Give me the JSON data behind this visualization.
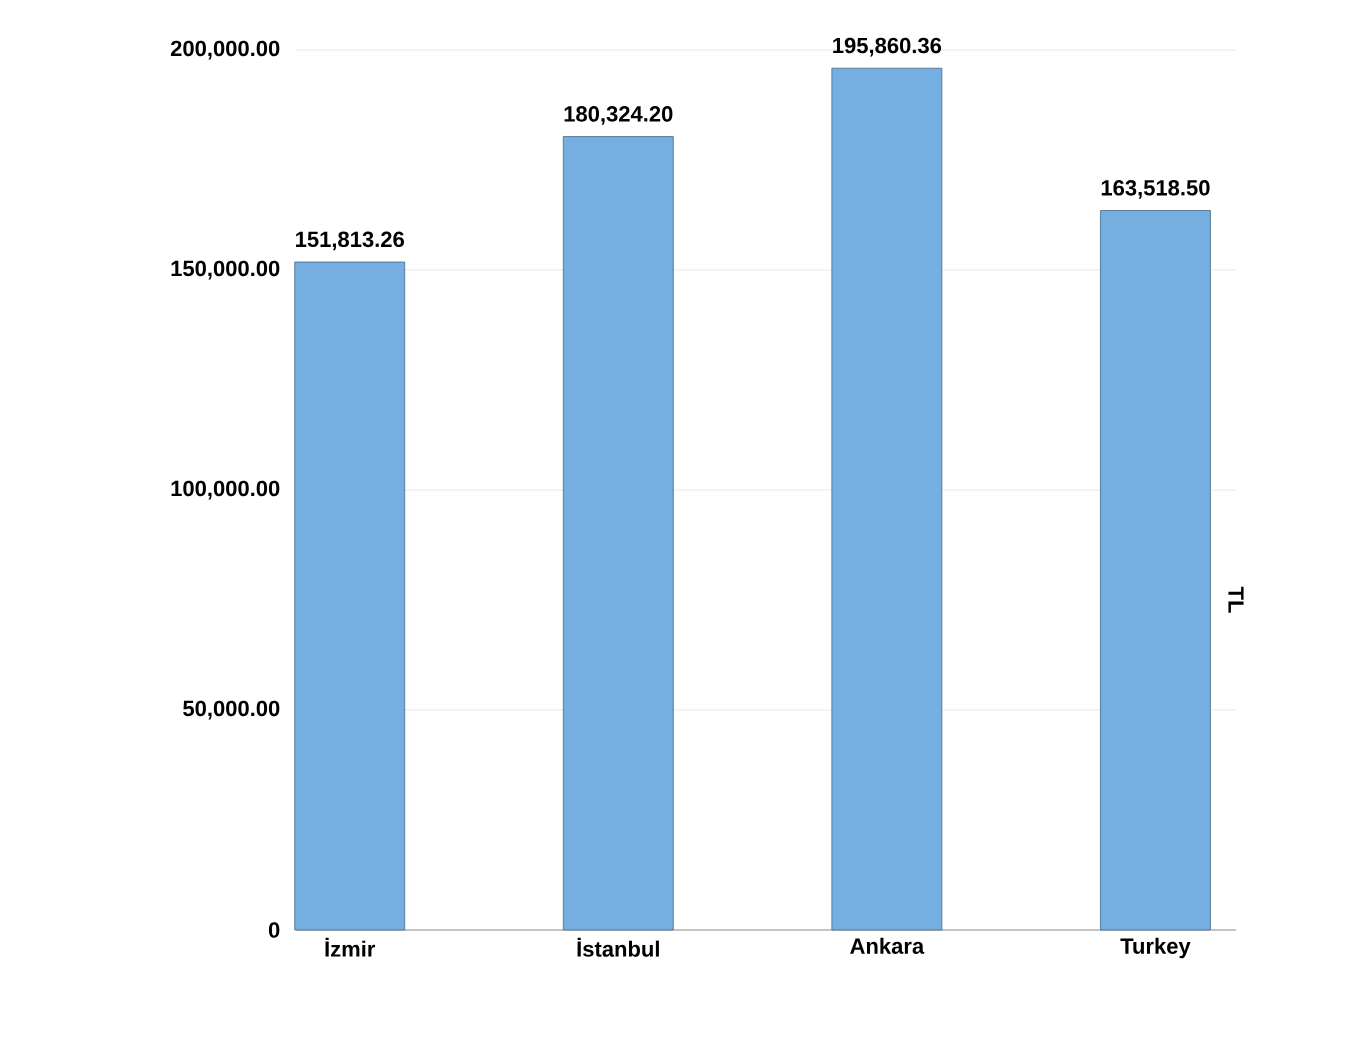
{
  "chart_data": {
    "type": "bar",
    "ylabel": "TL",
    "categories": [
      "İzmir",
      "İstanbul",
      "Ankara",
      "Turkey"
    ],
    "values": [
      151813.26,
      180324.2,
      195860.36,
      163518.5
    ],
    "value_labels": [
      "151,813.26",
      "180,324.20",
      "195,860.36",
      "163,518.50"
    ],
    "color": "#75aee0",
    "ylim": [
      0,
      200000
    ],
    "yticks": [
      0,
      {
        "value": 50000,
        "label": "50,000.00"
      },
      {
        "value": 100000,
        "label": "100,000.00"
      },
      {
        "value": 150000,
        "label": "150,000.00"
      },
      {
        "value": 200000,
        "label": "200,000.00"
      }
    ],
    "grid": "y"
  }
}
